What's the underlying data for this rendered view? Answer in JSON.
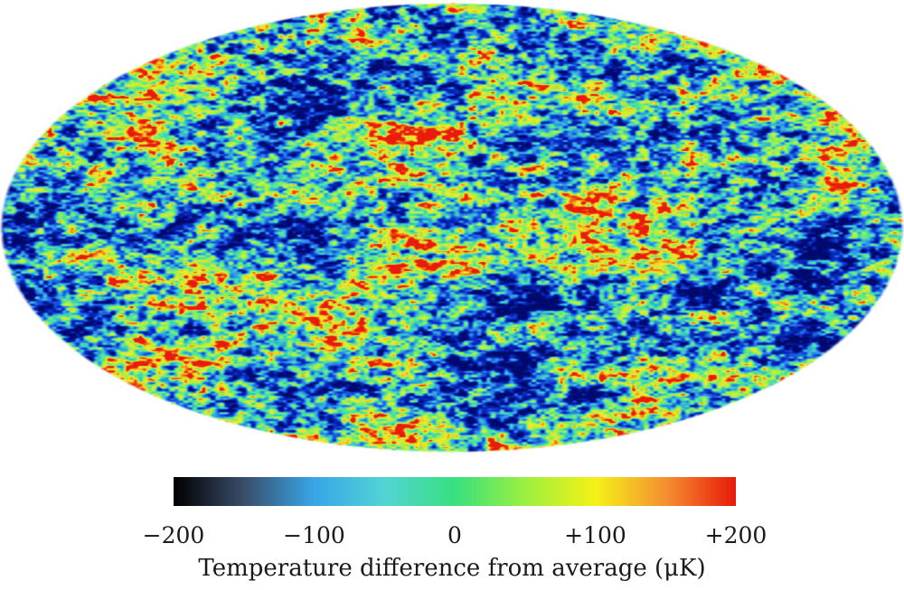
{
  "chart_data": {
    "type": "heatmap",
    "projection": "mollweide",
    "description_of_field": "all-sky temperature fluctuation map",
    "colorbar": {
      "min": -200,
      "max": 200,
      "ticks": [
        -200,
        -100,
        0,
        100,
        200
      ],
      "tick_labels": [
        "−200",
        "−100",
        "0",
        "+100",
        "+200"
      ],
      "stops": [
        {
          "value": -200,
          "color": "#000000"
        },
        {
          "value": -150,
          "color": "#3a4e6a"
        },
        {
          "value": -100,
          "color": "#38a6e8"
        },
        {
          "value": -50,
          "color": "#52d4d4"
        },
        {
          "value": 0,
          "color": "#38e080"
        },
        {
          "value": 50,
          "color": "#9cf040"
        },
        {
          "value": 100,
          "color": "#f5f218"
        },
        {
          "value": 150,
          "color": "#f59030"
        },
        {
          "value": 200,
          "color": "#e81b0c"
        }
      ]
    },
    "map_palette": {
      "cold_deep": "#000a6e",
      "cold": "#0a2dc8",
      "cool": "#2e8cf0",
      "neutral": "#3ee0b0",
      "warm": "#9ef04a",
      "hot": "#f8e828",
      "hottest": "#e81b0c"
    },
    "xlabel": "Temperature difference from average (μK)"
  }
}
